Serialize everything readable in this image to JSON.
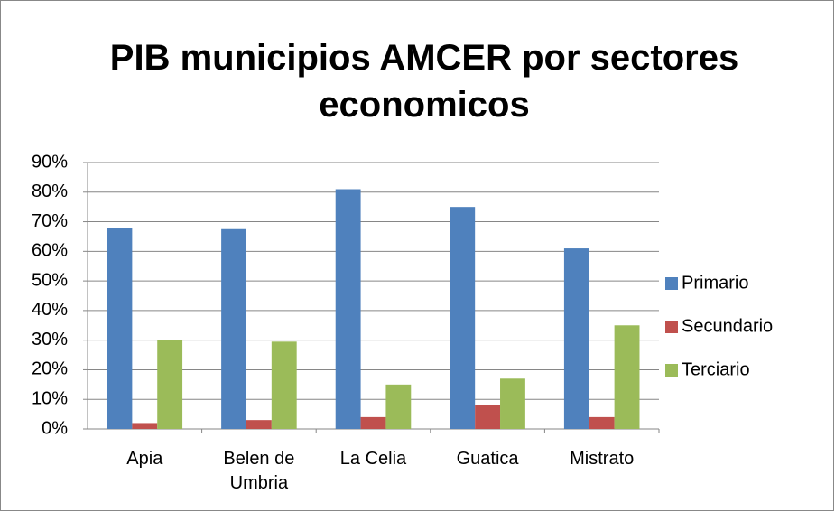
{
  "chart_data": {
    "type": "bar",
    "title": "PIB municipios AMCER por sectores economicos",
    "categories": [
      "Apia",
      "Belen de Umbria",
      "La Celia",
      "Guatica",
      "Mistrato"
    ],
    "series": [
      {
        "name": "Primario",
        "color": "#4f81bd",
        "values": [
          68,
          67.5,
          81,
          75,
          61
        ]
      },
      {
        "name": "Secundario",
        "color": "#c0504d",
        "values": [
          2,
          3,
          4,
          8,
          4
        ]
      },
      {
        "name": "Terciario",
        "color": "#9bbb59",
        "values": [
          30,
          29.5,
          15,
          17,
          35
        ]
      }
    ],
    "ylim": [
      0,
      90
    ],
    "yticks": [
      {
        "value": 0,
        "label": "0%"
      },
      {
        "value": 10,
        "label": "10%"
      },
      {
        "value": 20,
        "label": "20%"
      },
      {
        "value": 30,
        "label": "30%"
      },
      {
        "value": 40,
        "label": "40%"
      },
      {
        "value": 50,
        "label": "50%"
      },
      {
        "value": 60,
        "label": "60%"
      },
      {
        "value": 70,
        "label": "70%"
      },
      {
        "value": 80,
        "label": "80%"
      },
      {
        "value": 90,
        "label": "90%"
      }
    ],
    "grid": true,
    "legend": "right"
  }
}
